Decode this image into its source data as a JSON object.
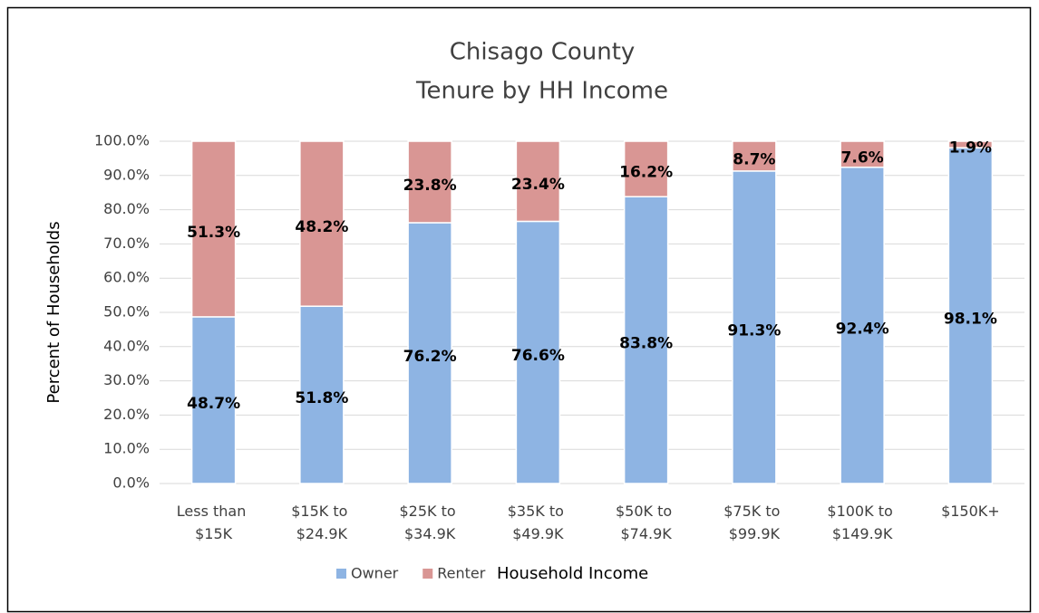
{
  "chart_data": {
    "type": "stacked_bar",
    "title": "Chisago County",
    "subtitle": "Tenure by HH Income",
    "categories": [
      "Less than $15K",
      "$15K to $24.9K",
      "$25K to $34.9K",
      "$35K to $49.9K",
      "$50K to $74.9K",
      "$75K to $99.9K",
      "$100K to $149.9K",
      "$150K+"
    ],
    "series": [
      {
        "name": "Owner",
        "color": "#8eb4e3",
        "values": [
          48.7,
          51.8,
          76.2,
          76.6,
          83.8,
          91.3,
          92.4,
          98.1
        ],
        "value_labels": [
          "48.7%",
          "51.8%",
          "76.2%",
          "76.6%",
          "83.8%",
          "91.3%",
          "92.4%",
          "98.1%"
        ]
      },
      {
        "name": "Renter",
        "color": "#d99694",
        "values": [
          51.3,
          48.2,
          23.8,
          23.4,
          16.2,
          8.7,
          7.6,
          1.9
        ],
        "value_labels": [
          "51.3%",
          "48.2%",
          "23.8%",
          "23.4%",
          "16.2%",
          "8.7%",
          "7.6%",
          "1.9%"
        ]
      }
    ],
    "y_label": "Percent of Households",
    "x_label": "Household Income",
    "ylim": [
      0,
      100
    ],
    "yticks": [
      {
        "value": 0,
        "label": "0.0%"
      },
      {
        "value": 10,
        "label": "10.0%"
      },
      {
        "value": 20,
        "label": "20.0%"
      },
      {
        "value": 30,
        "label": "30.0%"
      },
      {
        "value": 40,
        "label": "40.0%"
      },
      {
        "value": 50,
        "label": "50.0%"
      },
      {
        "value": 60,
        "label": "60.0%"
      },
      {
        "value": 70,
        "label": "70.0%"
      },
      {
        "value": 80,
        "label": "80.0%"
      },
      {
        "value": 90,
        "label": "90.0%"
      },
      {
        "value": 100,
        "label": "100.0%"
      }
    ],
    "grid": true,
    "legend": "bottom"
  }
}
